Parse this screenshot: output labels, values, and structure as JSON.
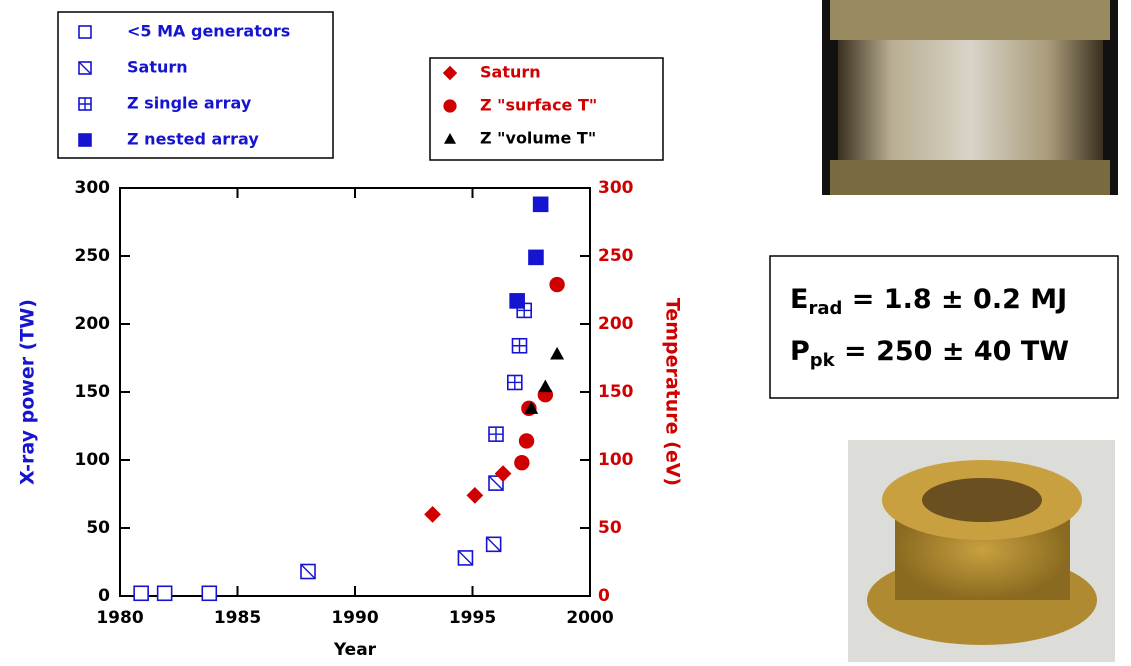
{
  "chart_data": {
    "type": "scatter",
    "xlabel": "Year",
    "ylabel": "X-ray power (TW)",
    "y2label": "Temperature (eV)",
    "xlim": [
      1980,
      2000
    ],
    "xticks": [
      1980,
      1985,
      1990,
      1995,
      2000
    ],
    "ylim": [
      0,
      300
    ],
    "yticks": [
      0,
      50,
      100,
      150,
      200,
      250,
      300
    ],
    "y2lim": [
      0,
      300
    ],
    "y2ticks": [
      0,
      50,
      100,
      150,
      200,
      250,
      300
    ],
    "ylabel_color": "#1515d0",
    "y2label_color": "#d00000",
    "series": [
      {
        "name": "<5 MA generators",
        "color": "#1515d0",
        "marker": "square-open",
        "x": [
          1980.9,
          1981.9,
          1983.8
        ],
        "values": [
          2,
          2,
          2
        ]
      },
      {
        "name": "Saturn",
        "color": "#1515d0",
        "marker": "square-slash",
        "x": [
          1988.0,
          1994.7,
          1995.9,
          1996.0
        ],
        "values": [
          18,
          28,
          38,
          83
        ]
      },
      {
        "name": "Z single array",
        "color": "#1515d0",
        "marker": "square-plus",
        "x": [
          1996.0,
          1996.8,
          1997.0,
          1997.2
        ],
        "values": [
          119,
          157,
          184,
          210
        ]
      },
      {
        "name": "Z nested array",
        "color": "#1515d0",
        "marker": "square-filled",
        "x": [
          1996.9,
          1997.7,
          1997.9
        ],
        "values": [
          217,
          249,
          288
        ]
      },
      {
        "name": "Saturn",
        "color": "#d00000",
        "marker": "diamond",
        "axis": "y2",
        "x": [
          1993.3,
          1995.1,
          1996.3
        ],
        "values": [
          60,
          74,
          90
        ]
      },
      {
        "name": "Z \"surface T\"",
        "color": "#d00000",
        "marker": "circle",
        "axis": "y2",
        "x": [
          1997.1,
          1997.3,
          1997.4,
          1998.1,
          1998.6
        ],
        "values": [
          98,
          114,
          138,
          148,
          229
        ]
      },
      {
        "name": "Z \"volume T\"",
        "color": "#000000",
        "marker": "triangle",
        "axis": "y2",
        "x": [
          1997.5,
          1998.1,
          1998.6
        ],
        "values": [
          138,
          154,
          178
        ]
      }
    ]
  },
  "annotation": {
    "lines": [
      {
        "main": "E",
        "sub": "rad",
        "rest": " = 1.8 ± 0.2 MJ"
      },
      {
        "main": "P",
        "sub": "pk",
        "rest": " = 250 ± 40 TW"
      }
    ]
  }
}
